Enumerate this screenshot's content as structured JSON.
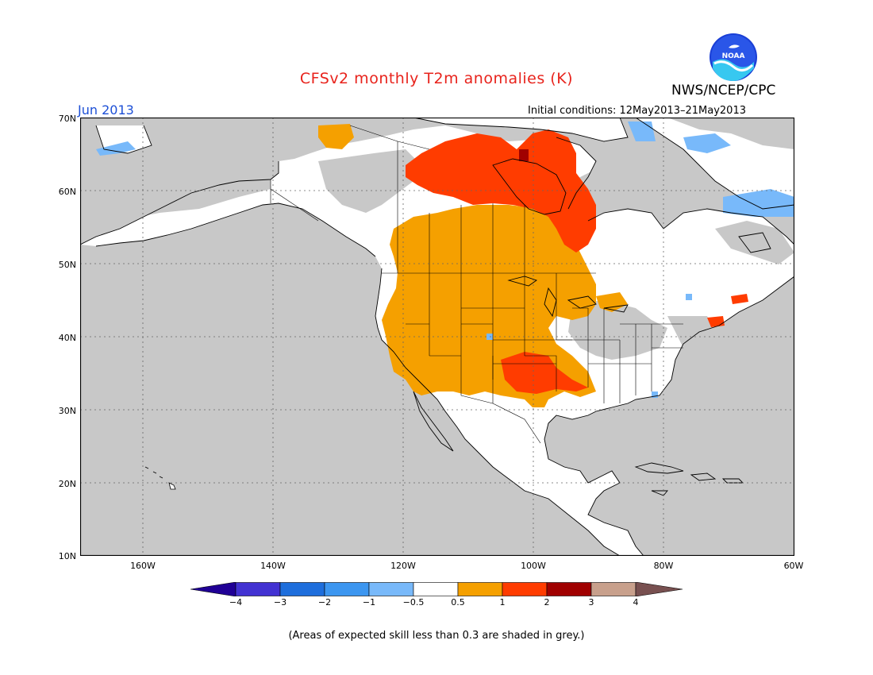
{
  "title": "CFSv2 monthly T2m anomalies (K)",
  "agency": "NWS/NCEP/CPC",
  "logo_text": "NOAA",
  "month": "Jun 2013",
  "initial_conditions": "Initial conditions: 12May2013–21May2013",
  "footnote": "(Areas of expected skill less than 0.3 are shaded in grey.)",
  "lat_labels": [
    "70N",
    "60N",
    "50N",
    "40N",
    "30N",
    "20N",
    "10N"
  ],
  "lon_labels": [
    "160W",
    "140W",
    "120W",
    "100W",
    "80W",
    "60W"
  ],
  "colorbar": {
    "labels": [
      "−4",
      "−3",
      "−2",
      "−1",
      "−0.5",
      "0.5",
      "1",
      "2",
      "3",
      "4"
    ],
    "colors": [
      "#200096",
      "#4232d2",
      "#1e6edc",
      "#3c96f0",
      "#78b9fa",
      "#ffffff",
      "#f5a000",
      "#ff3c00",
      "#a00000",
      "#c8a08c",
      "#785050"
    ]
  },
  "colors": {
    "grey_low_skill": "#c8c8c8",
    "land_neutral": "#ffffff",
    "orange": "#f5a000",
    "red": "#ff3c00",
    "dark_red": "#a00000",
    "light_blue": "#78b9fa",
    "mid_blue": "#3c96f0"
  }
}
